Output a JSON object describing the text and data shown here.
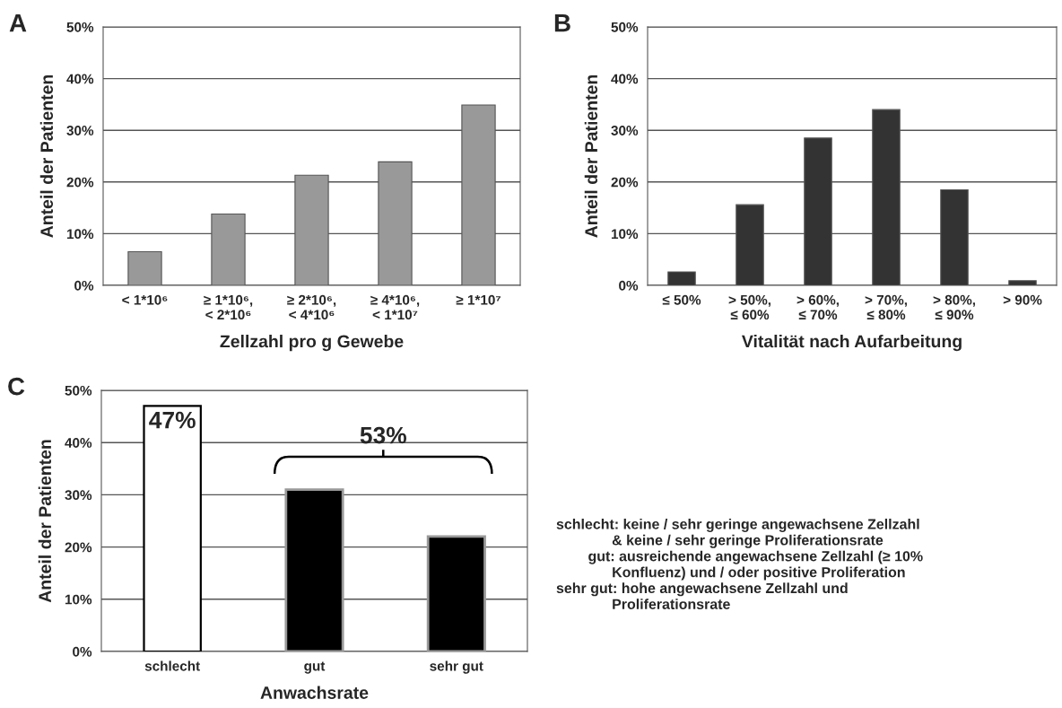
{
  "chart_data": [
    {
      "type": "bar",
      "title": "A",
      "xlabel": "Zellzahl pro g Gewebe",
      "ylabel": "Anteil der Patienten",
      "categories": [
        "< 1*10⁶",
        "≥ 1*10⁶,\n< 2*10⁶",
        "≥ 2*10⁶,\n< 4*10⁶",
        "≥ 4*10⁶,\n< 1*10⁷",
        "≥ 1*10⁷"
      ],
      "values": [
        6.5,
        13.8,
        21.3,
        23.9,
        34.9
      ],
      "color": "#999999",
      "ylim": [
        0,
        50
      ],
      "yticks": [
        {
          "value": 0,
          "label": "0%"
        },
        {
          "value": 10,
          "label": "10%"
        },
        {
          "value": 20,
          "label": "20%"
        },
        {
          "value": 30,
          "label": "30%"
        },
        {
          "value": 40,
          "label": "40%"
        },
        {
          "value": 50,
          "label": "50%"
        }
      ],
      "grid": "y"
    },
    {
      "type": "bar",
      "title": "B",
      "xlabel": "Vitalität nach Aufarbeitung",
      "ylabel": "Anteil der Patienten",
      "categories": [
        "≤ 50%",
        "> 50%,\n≤ 60%",
        "> 60%,\n≤ 70%",
        "> 70%,\n≤ 80%",
        "> 80%,\n≤ 90%",
        "> 90%"
      ],
      "values": [
        2.6,
        15.6,
        28.5,
        34.0,
        18.5,
        0.9
      ],
      "color": "#333333",
      "ylim": [
        0,
        50
      ],
      "yticks": [
        {
          "value": 0,
          "label": "0%"
        },
        {
          "value": 10,
          "label": "10%"
        },
        {
          "value": 20,
          "label": "20%"
        },
        {
          "value": 30,
          "label": "30%"
        },
        {
          "value": 40,
          "label": "40%"
        },
        {
          "value": 50,
          "label": "50%"
        }
      ],
      "grid": "y"
    },
    {
      "type": "bar",
      "title": "C",
      "xlabel": "Anwachsrate",
      "ylabel": "Anteil der Patienten",
      "categories": [
        "schlecht",
        "gut",
        "sehr gut"
      ],
      "values": [
        47,
        31,
        22
      ],
      "colors": [
        "#ffffff",
        "#000000",
        "#000000"
      ],
      "value_labels": [
        "47%",
        null,
        null
      ],
      "ylim": [
        0,
        50
      ],
      "yticks": [
        {
          "value": 0,
          "label": "0%"
        },
        {
          "value": 10,
          "label": "10%"
        },
        {
          "value": 20,
          "label": "20%"
        },
        {
          "value": 30,
          "label": "30%"
        },
        {
          "value": 40,
          "label": "40%"
        },
        {
          "value": 50,
          "label": "50%"
        }
      ],
      "grid": "y",
      "annotations": [
        "53%",
        "schlecht: keine / sehr geringe angewachsene Zellzahl\n              & keine / sehr geringe Proliferationsrate\n        gut: ausreichende angewachsene Zellzahl (≥ 10%\n              Konfluenz) und / oder positive Proliferation\nsehr gut: hohe angewachsene Zellzahl und\n              Proliferationsrate"
      ]
    }
  ]
}
